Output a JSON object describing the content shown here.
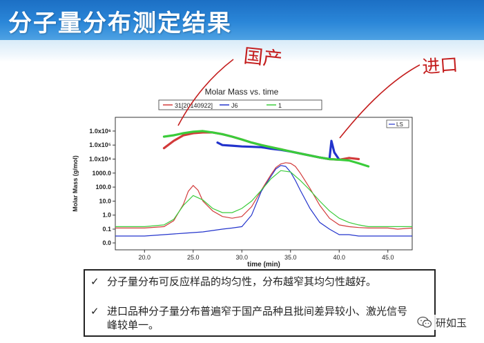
{
  "slide": {
    "title": "分子量分布测定结果"
  },
  "annotations": {
    "domestic": "国产",
    "imported": "进口"
  },
  "chart_data": {
    "type": "line",
    "title": "Molar Mass vs. time",
    "xlabel": "time (min)",
    "ylabel": "Molar Mass (g/mol)",
    "xlim": [
      17,
      47.5
    ],
    "x_ticks": [
      "20.0",
      "25.0",
      "30.0",
      "35.0",
      "40.0",
      "45.0"
    ],
    "x_tick_values": [
      20,
      25,
      30,
      35,
      40,
      45
    ],
    "y_ticks": [
      "0.0",
      "0.1",
      "1.0",
      "10.0",
      "100.0",
      "1000.0",
      "1.0x10⁴",
      "1.0x10⁵",
      "1.0x10⁶"
    ],
    "y_tick_values": [
      0,
      0.1,
      1,
      10,
      100,
      1000,
      10000,
      100000,
      1000000
    ],
    "legend": {
      "entries": [
        "31[20140922]",
        "J6",
        "1"
      ],
      "placement": "top"
    },
    "detector_legend": "LS",
    "grid": false,
    "series": [
      {
        "name": "31[20140922]",
        "color": "#d23a3a",
        "signal": {
          "x": [
            17,
            20,
            22,
            23,
            24,
            24.5,
            25,
            25.5,
            26,
            27,
            28,
            29,
            30,
            31,
            32,
            33,
            33.5,
            34,
            34.5,
            35,
            35.5,
            36,
            37,
            38,
            39,
            40,
            41,
            42,
            43,
            44,
            45,
            46,
            47.5
          ],
          "y": [
            0.12,
            0.12,
            0.15,
            0.4,
            6,
            50,
            130,
            60,
            10,
            2,
            0.8,
            0.6,
            0.8,
            4,
            60,
            800,
            2500,
            4500,
            5500,
            5000,
            3000,
            1000,
            80,
            5,
            0.6,
            0.2,
            0.15,
            0.13,
            0.12,
            0.12,
            0.12,
            0.1,
            0.12
          ]
        },
        "molar_mass": {
          "x": [
            22,
            23,
            24,
            25,
            26,
            27,
            28,
            29,
            30,
            31,
            32,
            33,
            34,
            35,
            36,
            37,
            38,
            39,
            40,
            41,
            42
          ],
          "y": [
            60000,
            200000,
            500000,
            700000,
            800000,
            800000,
            600000,
            400000,
            250000,
            150000,
            100000,
            70000,
            50000,
            35000,
            25000,
            18000,
            13000,
            10000,
            9000,
            12000,
            10000
          ]
        }
      },
      {
        "name": "J6",
        "color": "#2233cc",
        "signal": {
          "x": [
            17,
            20,
            22,
            24,
            26,
            27,
            28,
            29,
            30,
            31,
            32,
            33,
            33.5,
            34,
            34.5,
            35,
            35.5,
            36,
            37,
            38,
            39,
            40,
            41,
            42,
            43,
            44,
            45,
            46,
            47.5
          ],
          "y": [
            0.05,
            0.05,
            0.06,
            0.07,
            0.08,
            0.09,
            0.1,
            0.12,
            0.15,
            1,
            50,
            600,
            2000,
            3500,
            3000,
            1200,
            300,
            60,
            3,
            0.3,
            0.1,
            0.06,
            0.06,
            0.05,
            0.05,
            0.05,
            0.05,
            0.05,
            0.05
          ]
        },
        "molar_mass": {
          "x": [
            27.5,
            28,
            29,
            30,
            31,
            32,
            33,
            34,
            35,
            36,
            37,
            38,
            39,
            39.2,
            39.5,
            40
          ],
          "y": [
            150000,
            100000,
            90000,
            80000,
            75000,
            70000,
            55000,
            45000,
            35000,
            25000,
            18000,
            13000,
            10000,
            200000,
            30000,
            9000
          ]
        }
      },
      {
        "name": "1",
        "color": "#3acc3a",
        "signal": {
          "x": [
            17,
            20,
            22,
            23,
            24,
            25,
            26,
            27,
            28,
            29,
            30,
            31,
            32,
            33,
            34,
            35,
            36,
            37,
            38,
            39,
            40,
            41,
            42,
            43,
            44,
            45,
            46,
            47.5
          ],
          "y": [
            0.15,
            0.15,
            0.2,
            0.5,
            5,
            25,
            12,
            3,
            1.5,
            1.5,
            3,
            10,
            60,
            400,
            1500,
            1200,
            300,
            60,
            10,
            2,
            0.6,
            0.3,
            0.2,
            0.15,
            0.15,
            0.15,
            0.15,
            0.15
          ]
        },
        "molar_mass": {
          "x": [
            22,
            23,
            24,
            25,
            26,
            27,
            28,
            29,
            30,
            31,
            32,
            33,
            34,
            35,
            36,
            37,
            38,
            39,
            40,
            41,
            42,
            43
          ],
          "y": [
            400000,
            500000,
            700000,
            900000,
            1000000,
            800000,
            600000,
            400000,
            250000,
            150000,
            100000,
            70000,
            50000,
            35000,
            25000,
            18000,
            13000,
            10000,
            9000,
            8000,
            5000,
            3000
          ]
        }
      }
    ]
  },
  "bullets": [
    {
      "icon": "checkmark-icon",
      "text": "分子量分布可反应样品的均匀性，分布越窄其均匀性越好。"
    },
    {
      "icon": "checkmark-icon",
      "text": "进口品种分子量分布普遍窄于国产品种且批间差异较小、激光信号峰较单一。"
    }
  ],
  "watermark": {
    "icon": "wechat-icon",
    "label": "研如玉"
  }
}
